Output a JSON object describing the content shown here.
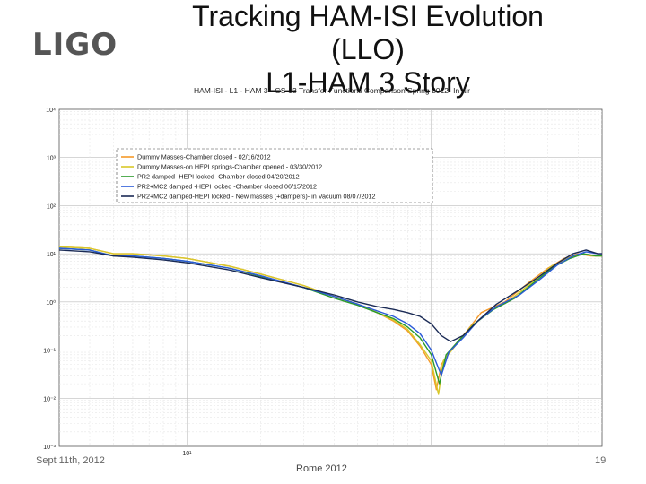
{
  "slide": {
    "logo": "LIGO",
    "title_line1": "Tracking HAM-ISI Evolution",
    "title_line2": "(LLO)",
    "title_line3": "L1-HAM 3 Story",
    "footer_date": "Sept 11th, 2012",
    "footer_venue": "Rome 2012",
    "page_number": "19"
  },
  "chart_data": {
    "type": "line",
    "title": "HAM-ISI - L1 - HAM 3 - GS-13 Transfer Functions Comparison Spring 2012- In air",
    "xscale": "log",
    "yscale": "log",
    "xlim": [
      3,
      500
    ],
    "ylim": [
      0.001,
      10000
    ],
    "grid": true,
    "legend_position": "top-left",
    "y_ticks": [
      {
        "value": 10000,
        "label": "10⁴"
      },
      {
        "value": 1000,
        "label": "10³"
      },
      {
        "value": 100,
        "label": "10²"
      },
      {
        "value": 10,
        "label": "10¹"
      },
      {
        "value": 1,
        "label": "10⁰"
      },
      {
        "value": 0.1,
        "label": "10⁻¹"
      },
      {
        "value": 0.01,
        "label": "10⁻²"
      },
      {
        "value": 0.001,
        "label": "10⁻³"
      }
    ],
    "x_ticks": [
      {
        "value": 10,
        "label": "10¹"
      }
    ],
    "series": [
      {
        "name": "Dummy Masses-Chamber closed - 02/16/2012",
        "color": "#f59a2a",
        "points": [
          [
            3,
            14
          ],
          [
            4,
            13
          ],
          [
            5,
            10
          ],
          [
            6,
            10
          ],
          [
            8,
            9
          ],
          [
            10,
            8
          ],
          [
            15,
            5.5
          ],
          [
            20,
            3.8
          ],
          [
            30,
            2.2
          ],
          [
            40,
            1.3
          ],
          [
            50,
            0.9
          ],
          [
            60,
            0.6
          ],
          [
            70,
            0.4
          ],
          [
            80,
            0.25
          ],
          [
            90,
            0.12
          ],
          [
            100,
            0.05
          ],
          [
            105,
            0.015
          ],
          [
            110,
            0.05
          ],
          [
            120,
            0.1
          ],
          [
            140,
            0.25
          ],
          [
            160,
            0.6
          ],
          [
            200,
            1.0
          ],
          [
            250,
            2.5
          ],
          [
            300,
            5
          ],
          [
            350,
            8
          ],
          [
            400,
            10
          ],
          [
            450,
            9
          ],
          [
            500,
            9
          ]
        ]
      },
      {
        "name": "Dummy Masses-on HEPI springs-Chamber opened - 03/30/2012",
        "color": "#d8c82a",
        "points": [
          [
            3,
            14
          ],
          [
            4,
            13
          ],
          [
            5,
            10
          ],
          [
            6,
            10
          ],
          [
            8,
            9
          ],
          [
            10,
            8
          ],
          [
            15,
            5.5
          ],
          [
            20,
            3.8
          ],
          [
            30,
            2.2
          ],
          [
            40,
            1.3
          ],
          [
            50,
            0.9
          ],
          [
            60,
            0.6
          ],
          [
            70,
            0.42
          ],
          [
            80,
            0.27
          ],
          [
            90,
            0.13
          ],
          [
            100,
            0.06
          ],
          [
            107,
            0.012
          ],
          [
            112,
            0.06
          ],
          [
            125,
            0.12
          ],
          [
            145,
            0.3
          ],
          [
            170,
            0.6
          ],
          [
            210,
            1.1
          ],
          [
            260,
            2.6
          ],
          [
            310,
            5.5
          ],
          [
            360,
            8
          ],
          [
            410,
            10
          ],
          [
            460,
            9
          ],
          [
            500,
            9
          ]
        ]
      },
      {
        "name": "PR2 damped -HEPI locked -Chamber closed 04/20/2012",
        "color": "#2a9a2a",
        "points": [
          [
            3,
            13
          ],
          [
            4,
            12
          ],
          [
            5,
            9
          ],
          [
            6,
            9
          ],
          [
            8,
            8
          ],
          [
            10,
            7
          ],
          [
            15,
            5
          ],
          [
            20,
            3.4
          ],
          [
            30,
            2.0
          ],
          [
            40,
            1.2
          ],
          [
            50,
            0.85
          ],
          [
            60,
            0.6
          ],
          [
            70,
            0.45
          ],
          [
            80,
            0.3
          ],
          [
            90,
            0.18
          ],
          [
            100,
            0.08
          ],
          [
            108,
            0.02
          ],
          [
            115,
            0.08
          ],
          [
            130,
            0.16
          ],
          [
            150,
            0.35
          ],
          [
            180,
            0.7
          ],
          [
            220,
            1.2
          ],
          [
            270,
            2.8
          ],
          [
            320,
            5.5
          ],
          [
            370,
            8
          ],
          [
            420,
            10
          ],
          [
            470,
            9
          ],
          [
            500,
            9
          ]
        ]
      },
      {
        "name": "PR2+MC2 damped -HEPI locked -Chamber closed 06/15/2012",
        "color": "#2a5ad8",
        "points": [
          [
            3,
            13
          ],
          [
            4,
            12
          ],
          [
            5,
            9
          ],
          [
            6,
            9
          ],
          [
            8,
            8
          ],
          [
            10,
            7
          ],
          [
            15,
            5
          ],
          [
            20,
            3.5
          ],
          [
            30,
            2.0
          ],
          [
            40,
            1.3
          ],
          [
            50,
            0.9
          ],
          [
            60,
            0.65
          ],
          [
            70,
            0.5
          ],
          [
            80,
            0.35
          ],
          [
            90,
            0.22
          ],
          [
            100,
            0.1
          ],
          [
            110,
            0.03
          ],
          [
            118,
            0.09
          ],
          [
            135,
            0.18
          ],
          [
            155,
            0.4
          ],
          [
            185,
            0.8
          ],
          [
            230,
            1.4
          ],
          [
            280,
            3
          ],
          [
            330,
            6
          ],
          [
            380,
            9
          ],
          [
            430,
            11
          ],
          [
            480,
            10
          ],
          [
            500,
            10
          ]
        ]
      },
      {
        "name": "PR2+MC2 damped-HEPI locked - New masses (+dampers)- in Vacuum 08/07/2012",
        "color": "#1a2a55",
        "points": [
          [
            3,
            12
          ],
          [
            4,
            11
          ],
          [
            5,
            9
          ],
          [
            6,
            8.5
          ],
          [
            8,
            7.5
          ],
          [
            10,
            6.5
          ],
          [
            15,
            4.6
          ],
          [
            20,
            3.2
          ],
          [
            30,
            2.0
          ],
          [
            40,
            1.4
          ],
          [
            50,
            1.0
          ],
          [
            60,
            0.8
          ],
          [
            70,
            0.7
          ],
          [
            80,
            0.6
          ],
          [
            90,
            0.5
          ],
          [
            100,
            0.35
          ],
          [
            110,
            0.2
          ],
          [
            120,
            0.15
          ],
          [
            135,
            0.2
          ],
          [
            155,
            0.4
          ],
          [
            185,
            0.9
          ],
          [
            230,
            1.8
          ],
          [
            280,
            3.5
          ],
          [
            330,
            6.5
          ],
          [
            380,
            10
          ],
          [
            430,
            12
          ],
          [
            480,
            10
          ],
          [
            500,
            10
          ]
        ]
      }
    ]
  }
}
